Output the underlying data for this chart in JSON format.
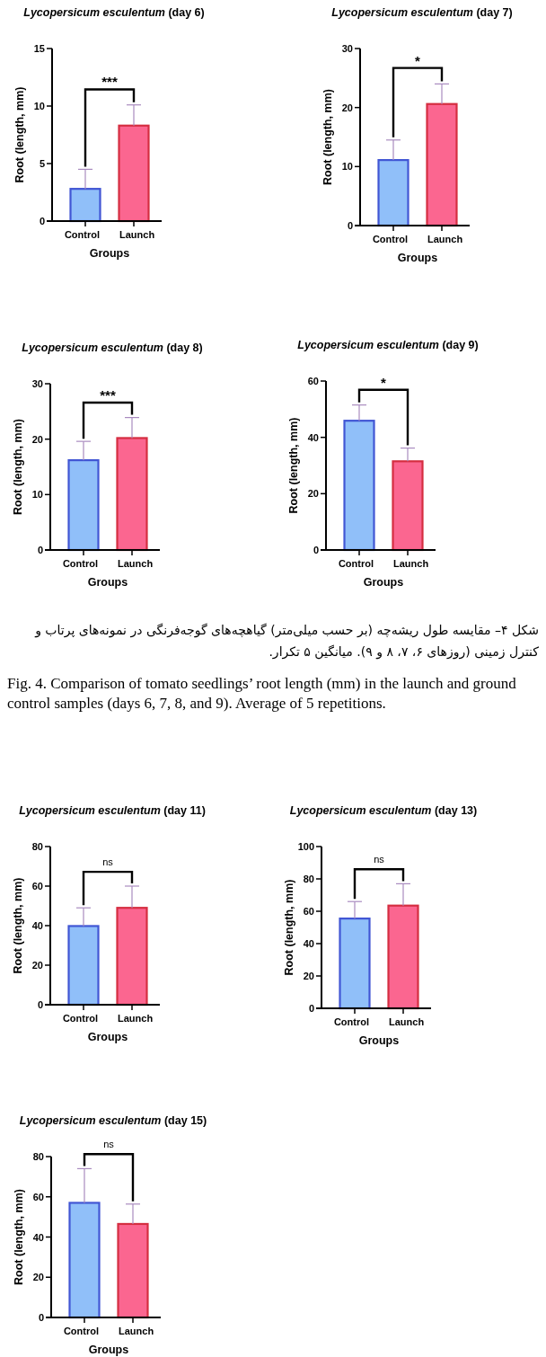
{
  "chart_data": [
    {
      "type": "bar",
      "title": "Lycopersicum esculentum (day 6)",
      "xlabel": "Groups",
      "ylabel": "Root (length, mm)",
      "categories": [
        "Control",
        "Launch"
      ],
      "values": [
        2.8,
        8.3
      ],
      "colors": [
        "#90bff9",
        "#fb6690"
      ],
      "errors": [
        [
          2.8,
          4.5
        ],
        [
          8.3,
          10.1
        ]
      ],
      "ylim": [
        0,
        15
      ],
      "yticks": [
        0,
        5,
        10,
        15
      ],
      "annotations": [
        "***"
      ]
    },
    {
      "type": "bar",
      "title": "Lycopersicum esculentum (day 7)",
      "xlabel": "Groups",
      "ylabel": "Root (length, mm)",
      "categories": [
        "Control",
        "Launch"
      ],
      "values": [
        11.1,
        20.6
      ],
      "colors": [
        "#90bff9",
        "#fb6690"
      ],
      "errors": [
        [
          11.1,
          14.5
        ],
        [
          20.6,
          24.0
        ]
      ],
      "ylim": [
        0,
        30
      ],
      "yticks": [
        0,
        10,
        20,
        30
      ],
      "annotations": [
        "*"
      ]
    },
    {
      "type": "bar",
      "title": "Lycopersicum esculentum (day 8)",
      "xlabel": "Groups",
      "ylabel": "Root (length, mm)",
      "categories": [
        "Control",
        "Launch"
      ],
      "values": [
        16.2,
        20.2
      ],
      "colors": [
        "#90bff9",
        "#fb6690"
      ],
      "errors": [
        [
          16.2,
          19.6
        ],
        [
          20.2,
          23.9
        ]
      ],
      "ylim": [
        0,
        30
      ],
      "yticks": [
        0,
        10,
        20,
        30
      ],
      "annotations": [
        "***"
      ]
    },
    {
      "type": "bar",
      "title": "Lycopersicum esculentum (day 9)",
      "xlabel": "Groups",
      "ylabel": "Root (length, mm)",
      "categories": [
        "Control",
        "Launch"
      ],
      "values": [
        45.9,
        31.5
      ],
      "colors": [
        "#90bff9",
        "#fb6690"
      ],
      "errors": [
        [
          45.9,
          51.5
        ],
        [
          31.5,
          36.2
        ]
      ],
      "ylim": [
        0,
        60
      ],
      "yticks": [
        0,
        20,
        40,
        60
      ],
      "annotations": [
        "*",
        "شکل ۴– مقایسه طول ریشه‌چه (بر حسب میلی‌متر) گیاهچه‌های گوجه‌فرنگی در نمونه‌های پرتاب و کنترل زمینی (روزهای ۶، ۷، ۸ و ۹). میانگین ۵ تکرار.",
        "Fig. 4. Comparison of tomato seedlings’ root length (mm) in the launch and ground control samples (days 6, 7, 8, and 9). Average of 5 repetitions."
      ]
    },
    {
      "type": "bar",
      "title": "Lycopersicum esculentum (day 11)",
      "xlabel": "Groups",
      "ylabel": "Root (length, mm)",
      "categories": [
        "Control",
        "Launch"
      ],
      "values": [
        39.8,
        49
      ],
      "colors": [
        "#90bff9",
        "#fb6690"
      ],
      "errors": [
        [
          39.8,
          49
        ],
        [
          49,
          60
        ]
      ],
      "ylim": [
        0,
        80
      ],
      "yticks": [
        0,
        20,
        40,
        60,
        80
      ],
      "annotations": [
        "ns"
      ]
    },
    {
      "type": "bar",
      "title": "Lycopersicum esculentum (day 13)",
      "xlabel": "Groups",
      "ylabel": "Root (length, mm)",
      "categories": [
        "Control",
        "Launch"
      ],
      "values": [
        55.5,
        63.5
      ],
      "colors": [
        "#90bff9",
        "#fb6690"
      ],
      "errors": [
        [
          55.5,
          66
        ],
        [
          63.5,
          77
        ]
      ],
      "ylim": [
        0,
        100
      ],
      "yticks": [
        0,
        20,
        40,
        60,
        80,
        100
      ],
      "annotations": [
        "ns"
      ]
    },
    {
      "type": "bar",
      "title": "Lycopersicum esculentum (day 15)",
      "xlabel": "Groups",
      "ylabel": "Root (length, mm)",
      "categories": [
        "Control",
        "Launch"
      ],
      "values": [
        57,
        46.5
      ],
      "colors": [
        "#90bff9",
        "#fb6690"
      ],
      "errors": [
        [
          57,
          74
        ],
        [
          46.5,
          56.4
        ]
      ],
      "ylim": [
        0,
        80
      ],
      "yticks": [
        0,
        20,
        40,
        60,
        80
      ],
      "annotations": [
        "ns"
      ]
    }
  ]
}
